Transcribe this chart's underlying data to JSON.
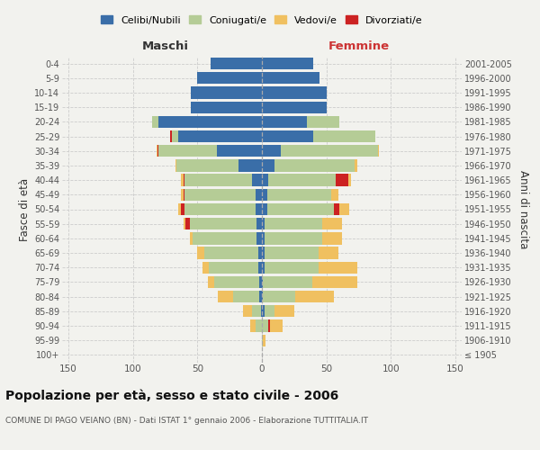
{
  "age_groups": [
    "100+",
    "95-99",
    "90-94",
    "85-89",
    "80-84",
    "75-79",
    "70-74",
    "65-69",
    "60-64",
    "55-59",
    "50-54",
    "45-49",
    "40-44",
    "35-39",
    "30-34",
    "25-29",
    "20-24",
    "15-19",
    "10-14",
    "5-9",
    "0-4"
  ],
  "birth_years": [
    "≤ 1905",
    "1906-1910",
    "1911-1915",
    "1916-1920",
    "1921-1925",
    "1926-1930",
    "1931-1935",
    "1936-1940",
    "1941-1945",
    "1946-1950",
    "1951-1955",
    "1956-1960",
    "1961-1965",
    "1966-1970",
    "1971-1975",
    "1976-1980",
    "1981-1985",
    "1986-1990",
    "1991-1995",
    "1996-2000",
    "2001-2005"
  ],
  "males_celibe": [
    0,
    0,
    0,
    1,
    2,
    2,
    3,
    3,
    4,
    4,
    5,
    5,
    8,
    18,
    35,
    65,
    80,
    55,
    55,
    50,
    40
  ],
  "males_coniugato": [
    0,
    0,
    5,
    7,
    20,
    35,
    38,
    42,
    50,
    52,
    55,
    55,
    52,
    48,
    45,
    5,
    5,
    0,
    0,
    0,
    0
  ],
  "males_vedovo": [
    0,
    0,
    4,
    7,
    12,
    5,
    5,
    5,
    2,
    2,
    2,
    2,
    2,
    1,
    1,
    0,
    0,
    0,
    0,
    0,
    0
  ],
  "males_divorziato": [
    0,
    0,
    0,
    0,
    0,
    0,
    0,
    0,
    0,
    3,
    3,
    1,
    1,
    0,
    1,
    1,
    0,
    0,
    0,
    0,
    0
  ],
  "females_nubile": [
    0,
    0,
    0,
    2,
    1,
    1,
    2,
    2,
    2,
    2,
    4,
    4,
    5,
    10,
    15,
    40,
    35,
    50,
    50,
    45,
    40
  ],
  "females_coniugata": [
    0,
    1,
    5,
    8,
    25,
    38,
    42,
    42,
    45,
    45,
    52,
    50,
    52,
    62,
    75,
    48,
    25,
    0,
    0,
    0,
    0
  ],
  "females_vedova": [
    0,
    2,
    10,
    15,
    30,
    35,
    30,
    15,
    15,
    15,
    8,
    5,
    2,
    2,
    1,
    0,
    0,
    0,
    0,
    0,
    0
  ],
  "females_divorziata": [
    0,
    0,
    1,
    0,
    0,
    0,
    0,
    0,
    0,
    0,
    4,
    0,
    10,
    0,
    0,
    0,
    0,
    0,
    0,
    0,
    0
  ],
  "color_celibe": "#3a6ea8",
  "color_coniugato": "#b5cc96",
  "color_vedovo": "#f0c060",
  "color_divorziato": "#cc2222",
  "title": "Popolazione per età, sesso e stato civile - 2006",
  "subtitle": "COMUNE DI PAGO VEIANO (BN) - Dati ISTAT 1° gennaio 2006 - Elaborazione TUTTITALIA.IT",
  "xlim": 155,
  "bg_color": "#f2f2ee"
}
